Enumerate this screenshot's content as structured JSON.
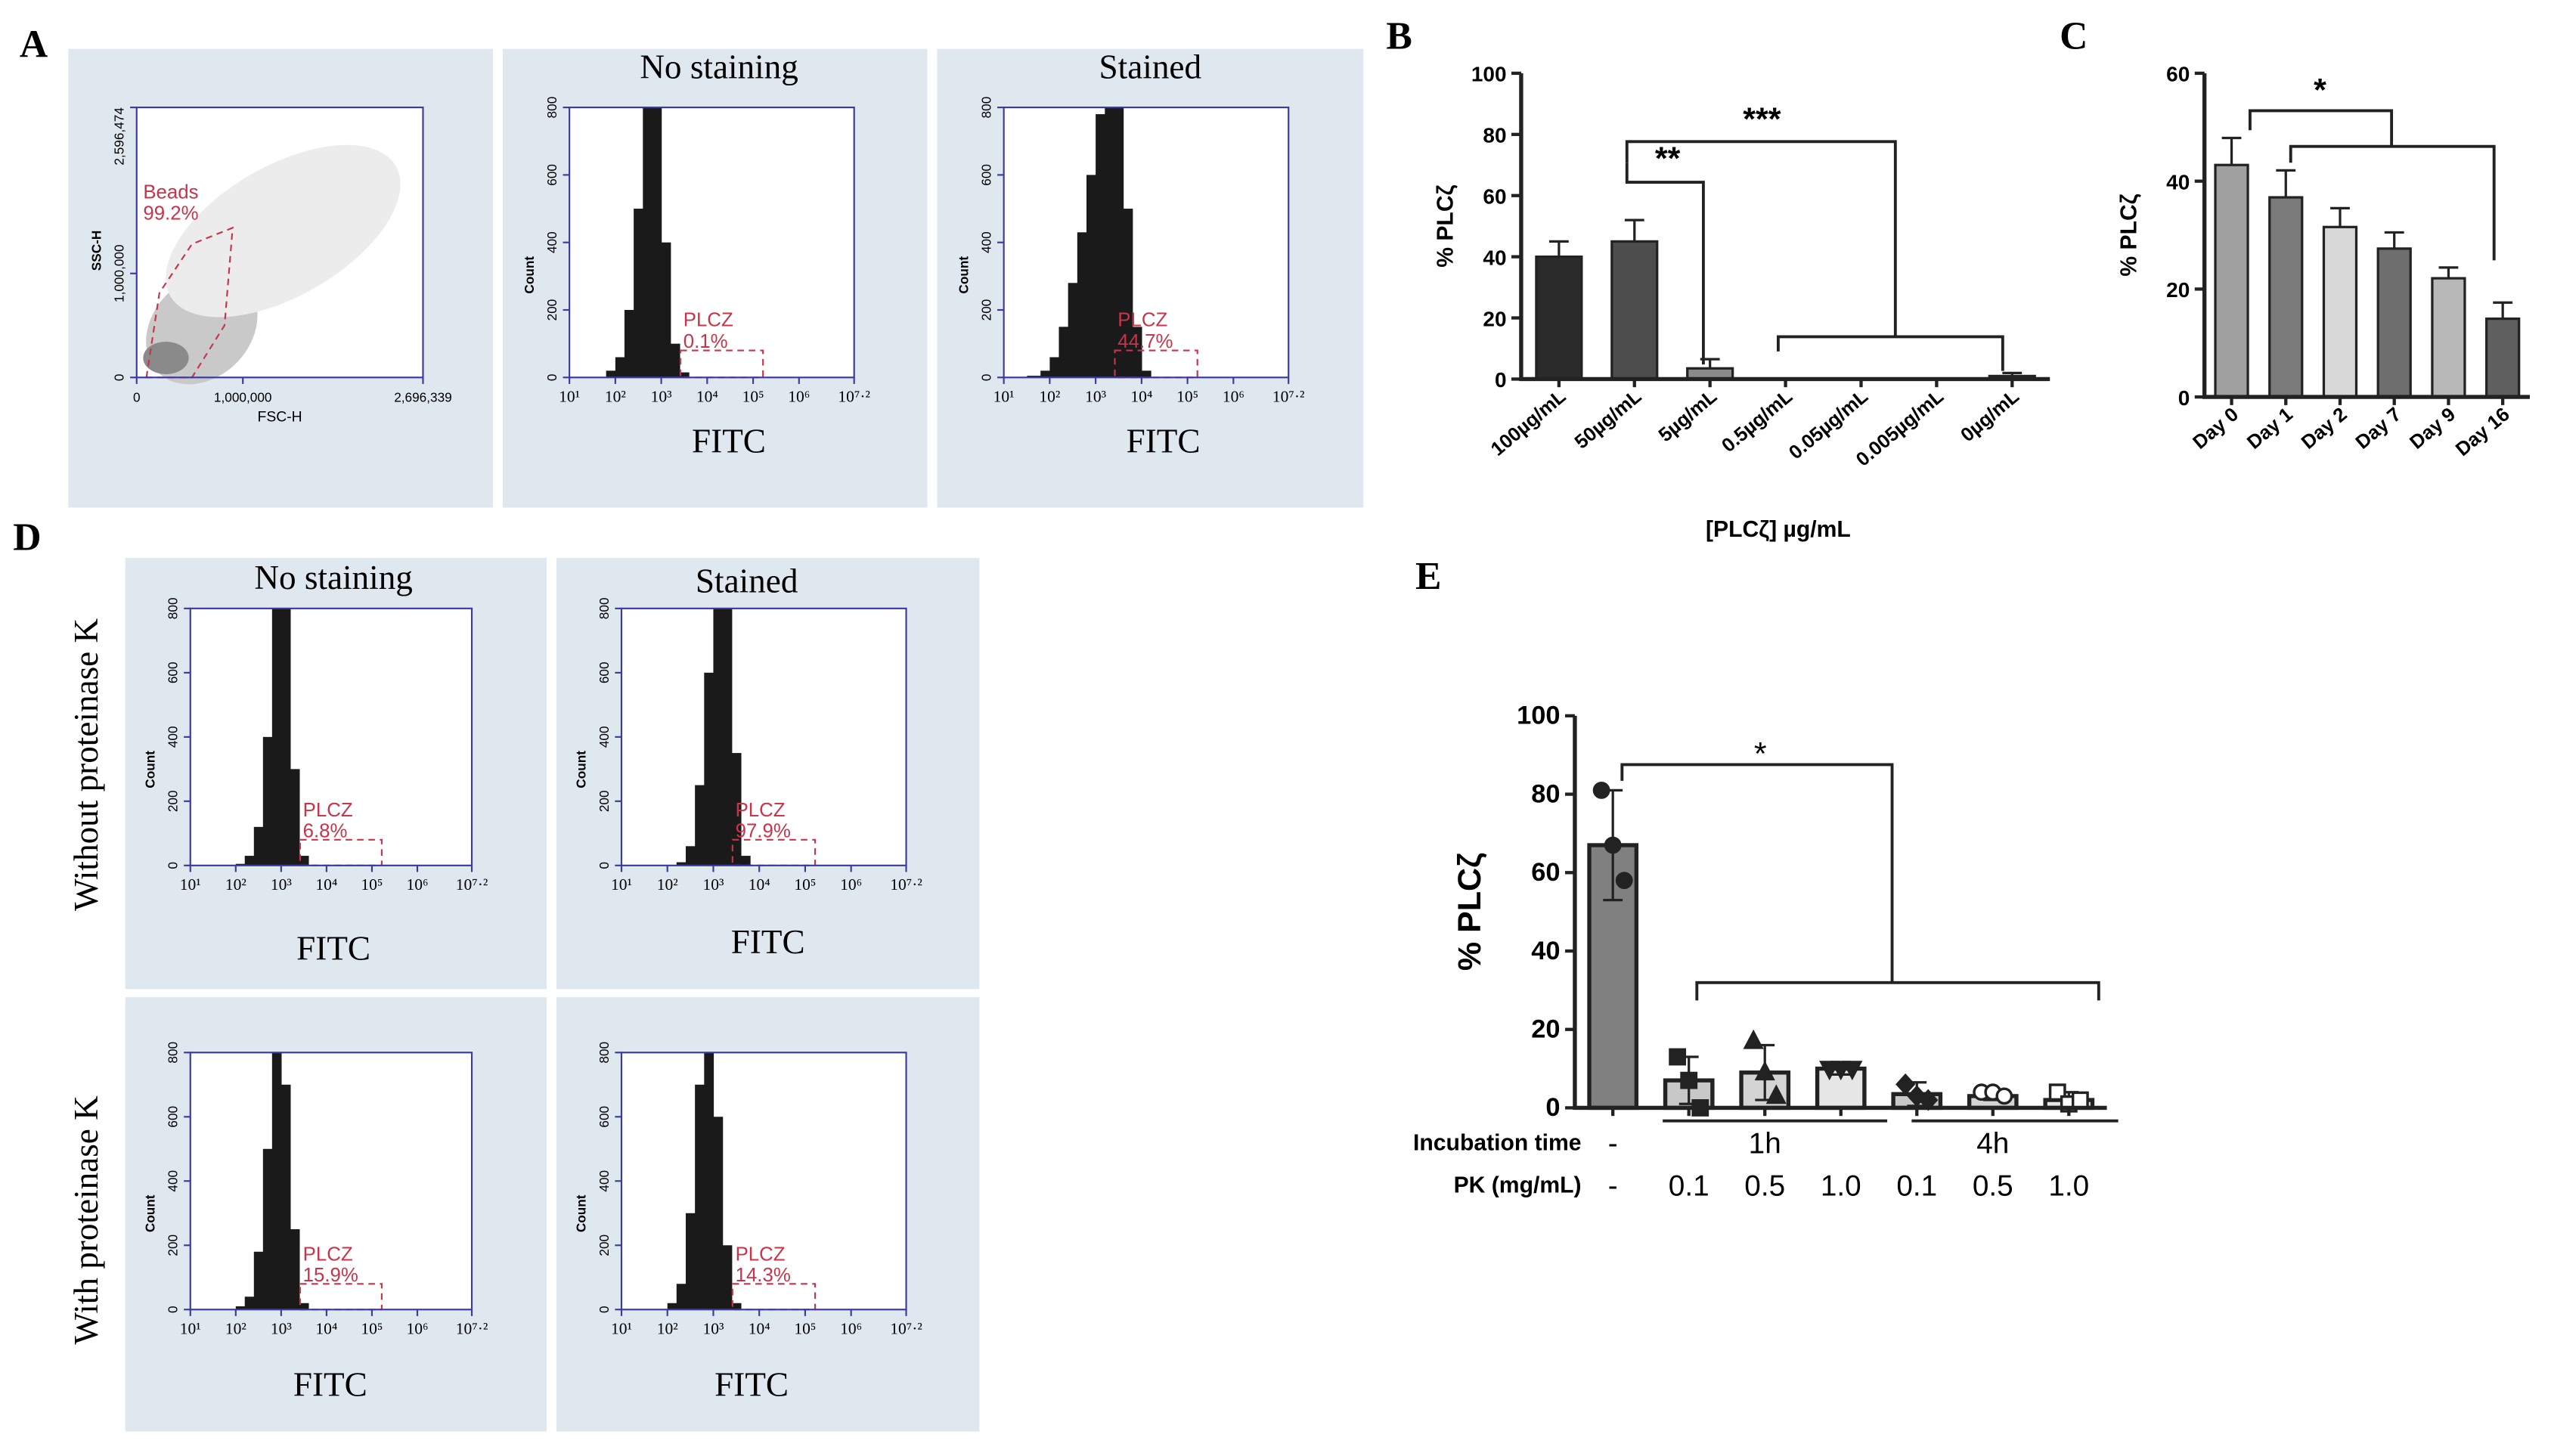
{
  "panel_labels": [
    "A",
    "B",
    "C",
    "D",
    "E"
  ],
  "panel_d": {
    "column_titles": [
      "No staining",
      "Stained"
    ],
    "row_labels": [
      "Without proteinase K",
      "With proteinase K"
    ]
  },
  "chart_data": [
    {
      "type": "scatter",
      "xlabel": "FSC-H",
      "ylabel": "SSC-H",
      "xlim": [
        0,
        2696339
      ],
      "ylim": [
        0,
        2596474
      ],
      "xticks": [
        0,
        {
          "value": 1000000,
          "label": "1,000,000"
        },
        {
          "value": 2696339,
          "label": "2,696,339"
        }
      ],
      "yticks": [
        0,
        {
          "value": 1000000,
          "label": "1,000,000"
        },
        {
          "value": 2596474,
          "label": "2,596,474"
        }
      ],
      "gate": {
        "name": "Beads",
        "label": "99.2%"
      },
      "color": "#c8344a"
    },
    {
      "type": "histogram",
      "title": "No staining",
      "xlabel": "FITC",
      "ylabel": "Count",
      "xscale": "log",
      "xlim": [
        10,
        15848932
      ],
      "ylim": [
        0,
        800
      ],
      "xticks": [
        {
          "value": 10,
          "label": "10¹"
        },
        {
          "value": 100,
          "label": "10²"
        },
        {
          "value": 1000,
          "label": "10³"
        },
        {
          "value": 10000,
          "label": "10⁴"
        },
        {
          "value": 100000,
          "label": "10⁵"
        },
        {
          "value": 1000000,
          "label": "10⁶"
        },
        {
          "value": 15848932,
          "label": "10⁷·²"
        }
      ],
      "yticks": [
        0,
        200,
        400,
        600,
        800
      ],
      "bins": [
        63,
        100,
        158,
        251,
        398,
        631,
        1000,
        1585,
        2512,
        3981
      ],
      "counts": [
        20,
        60,
        200,
        500,
        900,
        900,
        400,
        100,
        15
      ],
      "color": "#1a1a1a",
      "gate": {
        "name": "PLCZ",
        "label": "0.1%"
      }
    },
    {
      "type": "histogram",
      "title": "Stained",
      "xlabel": "FITC",
      "ylabel": "Count",
      "xscale": "log",
      "xlim": [
        10,
        15848932
      ],
      "ylim": [
        0,
        800
      ],
      "xticks": [
        {
          "value": 10,
          "label": "10¹"
        },
        {
          "value": 100,
          "label": "10²"
        },
        {
          "value": 1000,
          "label": "10³"
        },
        {
          "value": 10000,
          "label": "10⁴"
        },
        {
          "value": 100000,
          "label": "10⁵"
        },
        {
          "value": 1000000,
          "label": "10⁶"
        },
        {
          "value": 15848932,
          "label": "10⁷·²"
        }
      ],
      "yticks": [
        0,
        200,
        400,
        600,
        800
      ],
      "bins": [
        32,
        63,
        100,
        158,
        251,
        398,
        631,
        1000,
        1585,
        2512,
        3981,
        6310,
        10000,
        15849
      ],
      "counts": [
        5,
        20,
        60,
        150,
        280,
        430,
        600,
        780,
        900,
        850,
        500,
        150,
        20
      ],
      "color": "#1a1a1a",
      "gate": {
        "name": "PLCZ",
        "label": "44.7%"
      }
    },
    {
      "type": "bar",
      "ylabel": "% PLCζ",
      "xlabel": "[PLCζ] µg/mL",
      "categories": [
        "100µg/mL",
        "50µg/mL",
        "5µg/mL",
        "0.5µg/mL",
        "0.05µg/mL",
        "0.005µg/mL",
        "0µg/mL"
      ],
      "values": [
        40,
        45,
        3.5,
        0,
        0,
        0,
        1
      ],
      "errors": [
        5,
        7,
        3,
        0,
        0,
        0,
        1
      ],
      "colors": [
        "#2b2b2b",
        "#4d4d4d",
        "#8a8a8a",
        "#8a8a8a",
        "#8a8a8a",
        "#8a8a8a",
        "#8a8a8a"
      ],
      "ylim": [
        0,
        100
      ],
      "yticks": [
        0,
        20,
        40,
        60,
        80,
        100
      ],
      "annotations": [
        "**",
        "***"
      ]
    },
    {
      "type": "bar",
      "ylabel": "% PLCζ",
      "categories": [
        "Day 0",
        "Day 1",
        "Day 2",
        "Day 7",
        "Day 9",
        "Day 16"
      ],
      "values": [
        43,
        37,
        31.5,
        27.5,
        22,
        14.5
      ],
      "errors": [
        5,
        5,
        3.5,
        3,
        2,
        3
      ],
      "colors": [
        "#a0a0a0",
        "#7a7a7a",
        "#d8d8d8",
        "#6e6e6e",
        "#b8b8b8",
        "#5f5f5f"
      ],
      "ylim": [
        0,
        60
      ],
      "yticks": [
        0,
        20,
        40,
        60
      ],
      "annotations": [
        "*"
      ]
    },
    {
      "type": "histogram",
      "xlabel": "FITC",
      "ylabel": "Count",
      "xscale": "log",
      "xlim": [
        10,
        15848932
      ],
      "ylim": [
        0,
        800
      ],
      "xticks": [
        {
          "value": 10,
          "label": "10¹"
        },
        {
          "value": 100,
          "label": "10²"
        },
        {
          "value": 1000,
          "label": "10³"
        },
        {
          "value": 10000,
          "label": "10⁴"
        },
        {
          "value": 100000,
          "label": "10⁵"
        },
        {
          "value": 1000000,
          "label": "10⁶"
        },
        {
          "value": 15848932,
          "label": "10⁷·²"
        }
      ],
      "yticks": [
        0,
        200,
        400,
        600,
        800
      ],
      "bins": [
        100,
        158,
        251,
        398,
        631,
        1000,
        1585,
        2512,
        3981
      ],
      "counts": [
        5,
        30,
        120,
        400,
        900,
        900,
        300,
        30
      ],
      "color": "#1a1a1a",
      "gate": {
        "name": "PLCZ",
        "label": "6.8%"
      }
    },
    {
      "type": "histogram",
      "xlabel": "FITC",
      "ylabel": "Count",
      "xscale": "log",
      "xlim": [
        10,
        15848932
      ],
      "ylim": [
        0,
        800
      ],
      "xticks": [
        {
          "value": 10,
          "label": "10¹"
        },
        {
          "value": 100,
          "label": "10²"
        },
        {
          "value": 1000,
          "label": "10³"
        },
        {
          "value": 10000,
          "label": "10⁴"
        },
        {
          "value": 100000,
          "label": "10⁵"
        },
        {
          "value": 1000000,
          "label": "10⁶"
        },
        {
          "value": 15848932,
          "label": "10⁷·²"
        }
      ],
      "yticks": [
        0,
        200,
        400,
        600,
        800
      ],
      "bins": [
        158,
        251,
        398,
        631,
        1000,
        1585,
        2512,
        3981,
        6310
      ],
      "counts": [
        10,
        60,
        250,
        600,
        900,
        900,
        350,
        30
      ],
      "color": "#1a1a1a",
      "gate": {
        "name": "PLCZ",
        "label": "97.9%"
      }
    },
    {
      "type": "histogram",
      "xlabel": "FITC",
      "ylabel": "Count",
      "xscale": "log",
      "xlim": [
        10,
        15848932
      ],
      "ylim": [
        0,
        800
      ],
      "xticks": [
        {
          "value": 10,
          "label": "10¹"
        },
        {
          "value": 100,
          "label": "10²"
        },
        {
          "value": 1000,
          "label": "10³"
        },
        {
          "value": 10000,
          "label": "10⁴"
        },
        {
          "value": 100000,
          "label": "10⁵"
        },
        {
          "value": 1000000,
          "label": "10⁶"
        },
        {
          "value": 15848932,
          "label": "10⁷·²"
        }
      ],
      "yticks": [
        0,
        200,
        400,
        600,
        800
      ],
      "bins": [
        100,
        158,
        251,
        398,
        631,
        1000,
        1585,
        2512,
        3981
      ],
      "counts": [
        10,
        40,
        180,
        500,
        900,
        700,
        250,
        20
      ],
      "color": "#1a1a1a",
      "gate": {
        "name": "PLCZ",
        "label": "15.9%"
      }
    },
    {
      "type": "histogram",
      "xlabel": "FITC",
      "ylabel": "Count",
      "xscale": "log",
      "xlim": [
        10,
        15848932
      ],
      "ylim": [
        0,
        800
      ],
      "xticks": [
        {
          "value": 10,
          "label": "10¹"
        },
        {
          "value": 100,
          "label": "10²"
        },
        {
          "value": 1000,
          "label": "10³"
        },
        {
          "value": 10000,
          "label": "10⁴"
        },
        {
          "value": 100000,
          "label": "10⁵"
        },
        {
          "value": 1000000,
          "label": "10⁶"
        },
        {
          "value": 15848932,
          "label": "10⁷·²"
        }
      ],
      "yticks": [
        0,
        200,
        400,
        600,
        800
      ],
      "bins": [
        100,
        158,
        251,
        398,
        631,
        1000,
        1585,
        2512,
        3981
      ],
      "counts": [
        20,
        80,
        300,
        700,
        900,
        600,
        200,
        20
      ],
      "color": "#1a1a1a",
      "gate": {
        "name": "PLCZ",
        "label": "14.3%"
      }
    },
    {
      "type": "bar",
      "ylabel": "% PLCζ",
      "category_title": "PK (mg/mL)",
      "categories": [
        "-",
        "0.1",
        "0.5",
        "1.0",
        "0.1",
        "0.5",
        "1.0"
      ],
      "incubation": {
        "title": "Incubation time",
        "groups": [
          "-",
          "1h",
          "4h"
        ]
      },
      "values": [
        67,
        7,
        9,
        10,
        3.5,
        3,
        2
      ],
      "errors": [
        14,
        6,
        7,
        1.5,
        3,
        1,
        2
      ],
      "points": [
        [
          81,
          67,
          58
        ],
        [
          13,
          7,
          0
        ],
        [
          17,
          9,
          3
        ],
        [
          10,
          10,
          10
        ],
        [
          6,
          3,
          2
        ],
        [
          4,
          4,
          3
        ],
        [
          4,
          1,
          2
        ]
      ],
      "markers": [
        "circle",
        "square",
        "triangle",
        "triangle-down",
        "diamond",
        "circle-open",
        "square-open"
      ],
      "colors": [
        "#808080",
        "#c8c8c8",
        "#d4d4d4",
        "#e6e6e6",
        "#c8c8c8",
        "#d4d4d4",
        "#e6e6e6"
      ],
      "ylim": [
        0,
        100
      ],
      "yticks": [
        0,
        20,
        40,
        60,
        80,
        100
      ],
      "annotations": [
        "*"
      ]
    }
  ]
}
